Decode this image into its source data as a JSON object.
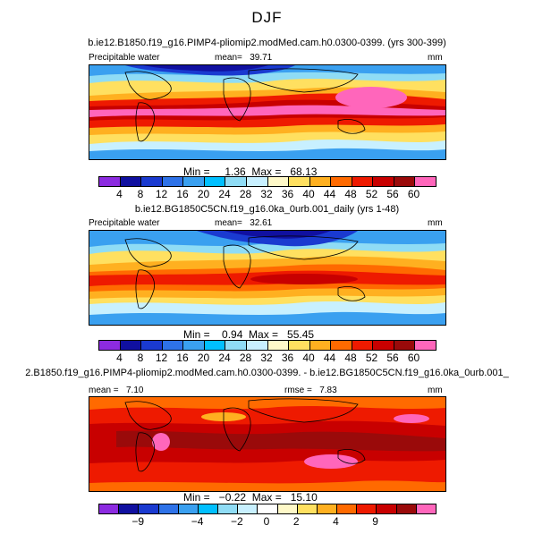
{
  "title": "DJF",
  "panels": [
    {
      "id": "panel1",
      "subtitle": "b.ie12.B1850.f19_g16.PIMP4-pliomip2.modMed.cam.h0.0300-0399. (yrs 300-399)",
      "left_label": "Precipitable water",
      "mean_label": "mean=",
      "mean_value": "39.71",
      "units": "mm",
      "stats": "Min =     1.36  Max =   68.13",
      "colorbar_colors": [
        "#8c2be0",
        "#1010a0",
        "#1a3ad0",
        "#2e72e8",
        "#3aa0f0",
        "#00bfff",
        "#8fdcf5",
        "#c8f0ff",
        "#fff9c8",
        "#ffe060",
        "#ffb020",
        "#ff6a00",
        "#ee1a00",
        "#c80000",
        "#9a0a0a",
        "#ff66bb"
      ],
      "colorbar_ticks": [
        "4",
        "8",
        "12",
        "16",
        "20",
        "24",
        "28",
        "32",
        "36",
        "40",
        "44",
        "48",
        "52",
        "56",
        "60"
      ]
    },
    {
      "id": "panel2",
      "subtitle": "b.ie12.BG1850C5CN.f19_g16.0ka_0urb.001_daily (yrs 1-48)",
      "left_label": "Precipitable water",
      "mean_label": "mean=",
      "mean_value": "32.61",
      "units": "mm",
      "stats": "Min =    0.94  Max =   55.45",
      "colorbar_colors": [
        "#8c2be0",
        "#1010a0",
        "#1a3ad0",
        "#2e72e8",
        "#3aa0f0",
        "#00bfff",
        "#8fdcf5",
        "#c8f0ff",
        "#fff9c8",
        "#ffe060",
        "#ffb020",
        "#ff6a00",
        "#ee1a00",
        "#c80000",
        "#9a0a0a",
        "#ff66bb"
      ],
      "colorbar_ticks": [
        "4",
        "8",
        "12",
        "16",
        "20",
        "24",
        "28",
        "32",
        "36",
        "40",
        "44",
        "48",
        "52",
        "56",
        "60"
      ]
    },
    {
      "id": "panel3",
      "subtitle": "2.B1850.f19_g16.PIMP4-pliomip2.modMed.cam.h0.0300-0399. - b.ie12.BG1850C5CN.f19_g16.0ka_0urb.001_",
      "mean_label": "mean =",
      "mean_value": "7.10",
      "rmse_label": "rmse =",
      "rmse_value": "7.83",
      "units": "mm",
      "stats": "Min =   −0.22  Max =   15.10",
      "colorbar_colors": [
        "#8c2be0",
        "#1010a0",
        "#1a3ad0",
        "#2e72e8",
        "#3aa0f0",
        "#00bfff",
        "#8fdcf5",
        "#c8f0ff",
        "#ffffff",
        "#fff9c8",
        "#ffe060",
        "#ffb020",
        "#ff6a00",
        "#ee1a00",
        "#c80000",
        "#9a0a0a",
        "#ff66bb"
      ],
      "colorbar_ticks": [
        "−9",
        "−4",
        "−2",
        "0",
        "2",
        "4",
        "9"
      ]
    }
  ]
}
